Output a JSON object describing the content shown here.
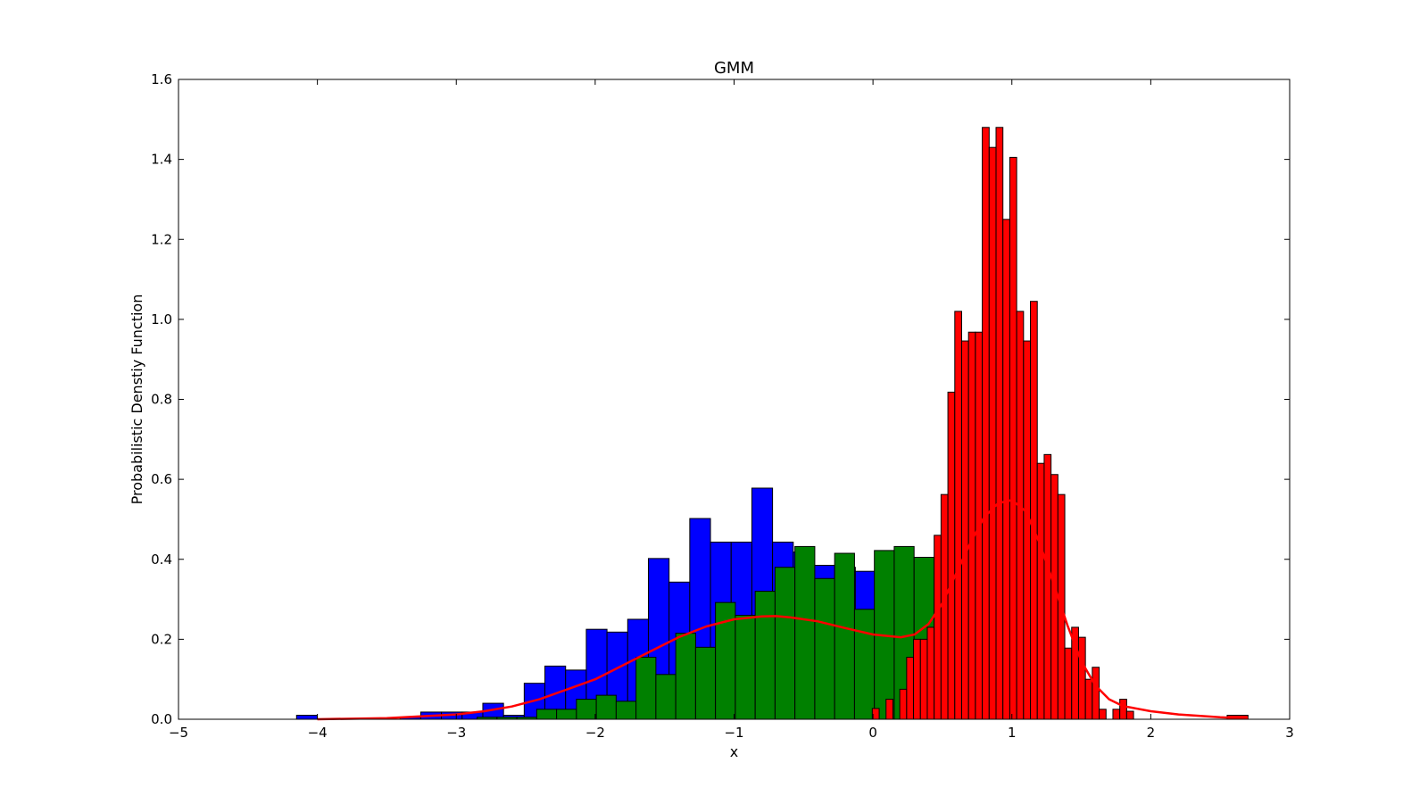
{
  "chart_data": {
    "type": "bar",
    "title": "GMM",
    "xlabel": "x",
    "ylabel": "Probabilistic Denstiy Function",
    "xlim": [
      -5,
      3
    ],
    "ylim": [
      0.0,
      1.6
    ],
    "grid": false,
    "x_ticks": [
      -5,
      -4,
      -3,
      -2,
      -1,
      0,
      1,
      2,
      3
    ],
    "x_tick_labels": [
      "−5",
      "−4",
      "−3",
      "−2",
      "−1",
      "0",
      "1",
      "2",
      "3"
    ],
    "y_ticks": [
      0.0,
      0.2,
      0.4,
      0.6,
      0.8,
      1.0,
      1.2,
      1.4,
      1.6
    ],
    "y_tick_labels": [
      "0.0",
      "0.2",
      "0.4",
      "0.6",
      "0.8",
      "1.0",
      "1.2",
      "1.4",
      "1.6"
    ],
    "series": [
      {
        "type": "histogram",
        "color": "#0000ff",
        "bin_start": -4.15,
        "bin_width": 0.149,
        "values": [
          0.01,
          0,
          0,
          0,
          0,
          0.005,
          0.018,
          0.018,
          0.018,
          0.04,
          0.01,
          0.09,
          0.133,
          0.123,
          0.225,
          0.218,
          0.25,
          0.402,
          0.343,
          0.502,
          0.443,
          0.443,
          0.578,
          0.443,
          0.418,
          0.385,
          0.38,
          0.37,
          0.35,
          0.3,
          0.29
        ]
      },
      {
        "type": "histogram",
        "color": "#008000",
        "bin_start": -2.85,
        "bin_width": 0.143,
        "values": [
          0.005,
          0.005,
          0.005,
          0.025,
          0.025,
          0.05,
          0.06,
          0.045,
          0.155,
          0.112,
          0.215,
          0.18,
          0.292,
          0.26,
          0.32,
          0.38,
          0.432,
          0.352,
          0.415,
          0.275,
          0.422,
          0.432,
          0.405,
          0.2,
          0.1,
          0.087,
          0.077,
          0.05,
          0.05,
          0.017
        ]
      },
      {
        "type": "histogram",
        "color": "#ff0000",
        "bin_start": -0.005,
        "bin_width": 0.0495,
        "values": [
          0.027,
          0,
          0.05,
          0,
          0.075,
          0.155,
          0.2,
          0.2,
          0.23,
          0.46,
          0.562,
          0.818,
          1.02,
          0.946,
          0.968,
          0.968,
          1.48,
          1.43,
          1.48,
          1.25,
          1.405,
          1.02,
          0.946,
          1.045,
          0.64,
          0.662,
          0.612,
          0.562,
          0.178,
          0.23,
          0.205,
          0.1,
          0.13,
          0.025,
          0,
          0.025,
          0.05,
          0.02
        ],
        "extra_bars": [
          [
            2.55,
            2.7,
            0.01
          ]
        ]
      },
      {
        "type": "line",
        "color": "#ff0000",
        "x": [
          -4.0,
          -3.5,
          -3.0,
          -2.8,
          -2.6,
          -2.4,
          -2.2,
          -2.0,
          -1.8,
          -1.6,
          -1.4,
          -1.2,
          -1.0,
          -0.8,
          -0.7,
          -0.6,
          -0.4,
          -0.2,
          0.0,
          0.2,
          0.3,
          0.4,
          0.5,
          0.6,
          0.7,
          0.8,
          0.9,
          1.0,
          1.1,
          1.2,
          1.3,
          1.4,
          1.5,
          1.6,
          1.7,
          1.8,
          2.0,
          2.2,
          2.5,
          2.7
        ],
        "y": [
          0.0,
          0.003,
          0.012,
          0.02,
          0.032,
          0.05,
          0.075,
          0.1,
          0.135,
          0.17,
          0.205,
          0.232,
          0.25,
          0.257,
          0.258,
          0.255,
          0.245,
          0.228,
          0.212,
          0.205,
          0.212,
          0.238,
          0.29,
          0.365,
          0.44,
          0.505,
          0.54,
          0.548,
          0.52,
          0.44,
          0.34,
          0.235,
          0.145,
          0.085,
          0.05,
          0.033,
          0.02,
          0.012,
          0.005,
          0.002
        ]
      }
    ]
  }
}
